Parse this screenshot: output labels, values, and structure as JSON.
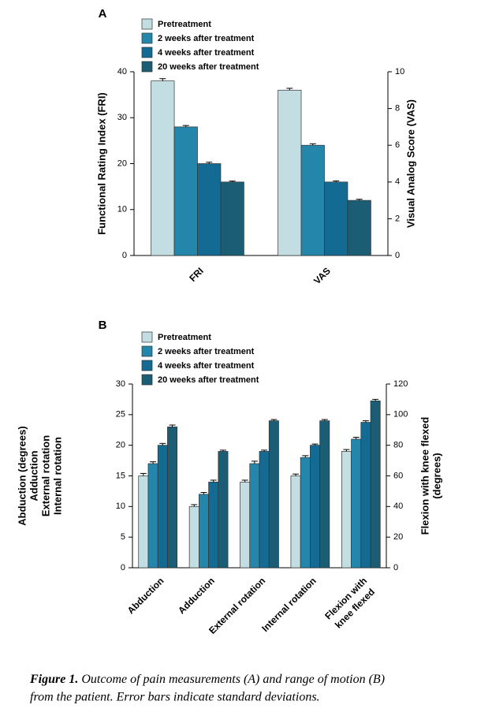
{
  "chart_data": [
    {
      "type": "bar",
      "panel": "A",
      "categories": [
        [
          "FRI"
        ],
        [
          "VAS"
        ]
      ],
      "category_axis": [
        "y",
        "y2"
      ],
      "ylabel": [
        "Functional Rating Index (FRI)"
      ],
      "y2label": [
        "Visual Analog Score (VAS)"
      ],
      "ylim": [
        0,
        40
      ],
      "yticks": [
        0,
        10,
        20,
        30,
        40
      ],
      "y2lim": [
        0,
        10
      ],
      "y2ticks": [
        0,
        2,
        4,
        6,
        8,
        10
      ],
      "series": [
        {
          "name": "Pretreatment",
          "color": "#c3dee2",
          "values": [
            38,
            9
          ],
          "errors": [
            0.5,
            0.1
          ]
        },
        {
          "name": "2 weeks after treatment",
          "color": "#2586ab",
          "values": [
            28,
            6
          ],
          "errors": [
            0.3,
            0.08
          ]
        },
        {
          "name": "4 weeks after treatment",
          "color": "#136a93",
          "values": [
            20,
            4
          ],
          "errors": [
            0.3,
            0.06
          ]
        },
        {
          "name": "20 weeks after treatment",
          "color": "#1a5d74",
          "values": [
            16,
            3
          ],
          "errors": [
            0.2,
            0.06
          ]
        }
      ]
    },
    {
      "type": "bar",
      "panel": "B",
      "categories": [
        [
          "Abduction"
        ],
        [
          "Adduction"
        ],
        [
          "External rotation"
        ],
        [
          "Internal rotation"
        ],
        [
          "Flexion with",
          "knee flexed"
        ]
      ],
      "category_axis": [
        "y",
        "y",
        "y",
        "y",
        "y2"
      ],
      "ylabel": [
        "Abduction (degrees)",
        "Adduction",
        "External rotation",
        "Internal rotation"
      ],
      "y2label": [
        "Flexion with knee flexed",
        "(degrees)"
      ],
      "ylim": [
        0,
        30
      ],
      "yticks": [
        0,
        5,
        10,
        15,
        20,
        25,
        30
      ],
      "y2lim": [
        0,
        120
      ],
      "y2ticks": [
        0,
        20,
        40,
        60,
        80,
        100,
        120
      ],
      "series": [
        {
          "name": "Pretreatment",
          "color": "#c3dee2",
          "values": [
            15,
            10,
            14,
            15,
            76
          ],
          "errors": [
            0.4,
            0.3,
            0.3,
            0.3,
            1.2
          ]
        },
        {
          "name": "2 weeks after treatment",
          "color": "#2586ab",
          "values": [
            17,
            12,
            17,
            18,
            84
          ],
          "errors": [
            0.3,
            0.3,
            0.4,
            0.3,
            1.2
          ]
        },
        {
          "name": "4 weeks after treatment",
          "color": "#136a93",
          "values": [
            20,
            14,
            19,
            20,
            95
          ],
          "errors": [
            0.3,
            0.3,
            0.2,
            0.2,
            1.0
          ]
        },
        {
          "name": "20 weeks after treatment",
          "color": "#1a5d74",
          "values": [
            23,
            19,
            24,
            24,
            109
          ],
          "errors": [
            0.3,
            0.2,
            0.2,
            0.2,
            1.0
          ]
        }
      ]
    }
  ],
  "caption": {
    "label": "Figure 1.",
    "lines": [
      "Outcome of pain measurements (A) and range of motion (B)",
      "from the patient. Error bars indicate standard deviations."
    ]
  }
}
